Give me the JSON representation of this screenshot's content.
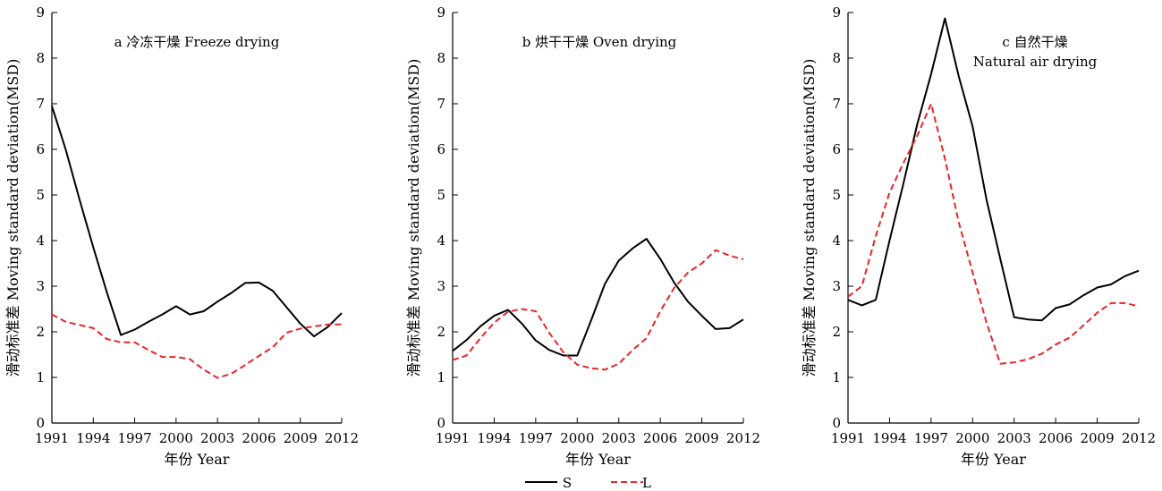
{
  "chart_data": [
    {
      "type": "line",
      "title": "a 冷冻干燥 Freeze drying",
      "title_lines": [
        "a  冷冻干燥 Freeze drying"
      ],
      "xlabel": "年份 Year",
      "ylabel": "滑动标准差 Moving standard deviation(MSD)",
      "xlim": [
        1991,
        2012
      ],
      "ylim": [
        0,
        9
      ],
      "xticks": [
        1991,
        1994,
        1997,
        2000,
        2003,
        2006,
        2009,
        2012
      ],
      "yticks": [
        0,
        1,
        2,
        3,
        4,
        5,
        6,
        7,
        8,
        9
      ],
      "x": [
        1991,
        1992,
        1993,
        1994,
        1995,
        1996,
        1997,
        1998,
        1999,
        2000,
        2001,
        2002,
        2003,
        2004,
        2005,
        2006,
        2007,
        2008,
        2009,
        2010,
        2011,
        2012
      ],
      "series": [
        {
          "name": "S",
          "color": "#000000",
          "style": "solid",
          "values": [
            6.95,
            6.0,
            4.9,
            3.85,
            2.85,
            1.93,
            2.05,
            2.22,
            2.38,
            2.56,
            2.38,
            2.45,
            2.66,
            2.85,
            3.07,
            3.08,
            2.9,
            2.54,
            2.18,
            1.9,
            2.11,
            2.41
          ]
        },
        {
          "name": "L",
          "color": "#e8262b",
          "style": "dashed",
          "values": [
            2.38,
            2.22,
            2.15,
            2.08,
            1.84,
            1.77,
            1.77,
            1.6,
            1.45,
            1.45,
            1.4,
            1.17,
            0.99,
            1.08,
            1.27,
            1.47,
            1.66,
            1.98,
            2.07,
            2.12,
            2.16,
            2.16
          ]
        }
      ]
    },
    {
      "type": "line",
      "title": "b 烘干干燥 Oven drying",
      "title_lines": [
        "b  烘干干燥 Oven drying"
      ],
      "xlabel": "年份 Year",
      "ylabel": "滑动标准差 Moving standard deviation(MSD)",
      "xlim": [
        1991,
        2012
      ],
      "ylim": [
        0,
        9
      ],
      "xticks": [
        1991,
        1994,
        1997,
        2000,
        2003,
        2006,
        2009,
        2012
      ],
      "yticks": [
        0,
        1,
        2,
        3,
        4,
        5,
        6,
        7,
        8,
        9
      ],
      "x": [
        1991,
        1992,
        1993,
        1994,
        1995,
        1996,
        1997,
        1998,
        1999,
        2000,
        2001,
        2002,
        2003,
        2004,
        2005,
        2006,
        2007,
        2008,
        2009,
        2010,
        2011,
        2012
      ],
      "series": [
        {
          "name": "S",
          "color": "#000000",
          "style": "solid",
          "values": [
            1.58,
            1.82,
            2.12,
            2.35,
            2.48,
            2.18,
            1.81,
            1.6,
            1.48,
            1.48,
            2.25,
            3.05,
            3.56,
            3.83,
            4.04,
            3.6,
            3.08,
            2.66,
            2.35,
            2.06,
            2.08,
            2.27
          ]
        },
        {
          "name": "L",
          "color": "#e8262b",
          "style": "dashed",
          "values": [
            1.38,
            1.48,
            1.86,
            2.2,
            2.44,
            2.5,
            2.45,
            1.97,
            1.55,
            1.28,
            1.2,
            1.17,
            1.3,
            1.6,
            1.86,
            2.45,
            2.96,
            3.3,
            3.5,
            3.79,
            3.67,
            3.59
          ]
        }
      ]
    },
    {
      "type": "line",
      "title": "c 自然干燥 Natural air drying",
      "title_lines": [
        "c  自然干燥",
        "Natural air drying"
      ],
      "xlabel": "年份 Year",
      "ylabel": "滑动标准差 Moving standard deviation(MSD)",
      "xlim": [
        1991,
        2012
      ],
      "ylim": [
        0,
        9
      ],
      "xticks": [
        1991,
        1994,
        1997,
        2000,
        2003,
        2006,
        2009,
        2012
      ],
      "yticks": [
        0,
        1,
        2,
        3,
        4,
        5,
        6,
        7,
        8,
        9
      ],
      "x": [
        1991,
        1992,
        1993,
        1994,
        1995,
        1996,
        1997,
        1998,
        1999,
        2000,
        2001,
        2002,
        2003,
        2004,
        2005,
        2006,
        2007,
        2008,
        2009,
        2010,
        2011,
        2012
      ],
      "series": [
        {
          "name": "S",
          "color": "#000000",
          "style": "solid",
          "values": [
            2.7,
            2.58,
            2.7,
            4.0,
            5.25,
            6.55,
            7.65,
            8.87,
            7.6,
            6.5,
            4.9,
            3.6,
            2.32,
            2.27,
            2.25,
            2.52,
            2.6,
            2.8,
            2.97,
            3.04,
            3.22,
            3.34
          ]
        },
        {
          "name": "L",
          "color": "#e8262b",
          "style": "dashed",
          "values": [
            2.77,
            3.0,
            4.1,
            5.05,
            5.7,
            6.3,
            7.0,
            5.8,
            4.4,
            3.3,
            2.2,
            1.3,
            1.33,
            1.4,
            1.52,
            1.72,
            1.87,
            2.14,
            2.42,
            2.63,
            2.63,
            2.56
          ]
        }
      ]
    }
  ],
  "legend": {
    "placement": "bottom-center",
    "items": [
      {
        "label": "S",
        "color": "#000000",
        "style": "solid"
      },
      {
        "label": "L",
        "color": "#e8262b",
        "style": "dashed"
      }
    ]
  }
}
